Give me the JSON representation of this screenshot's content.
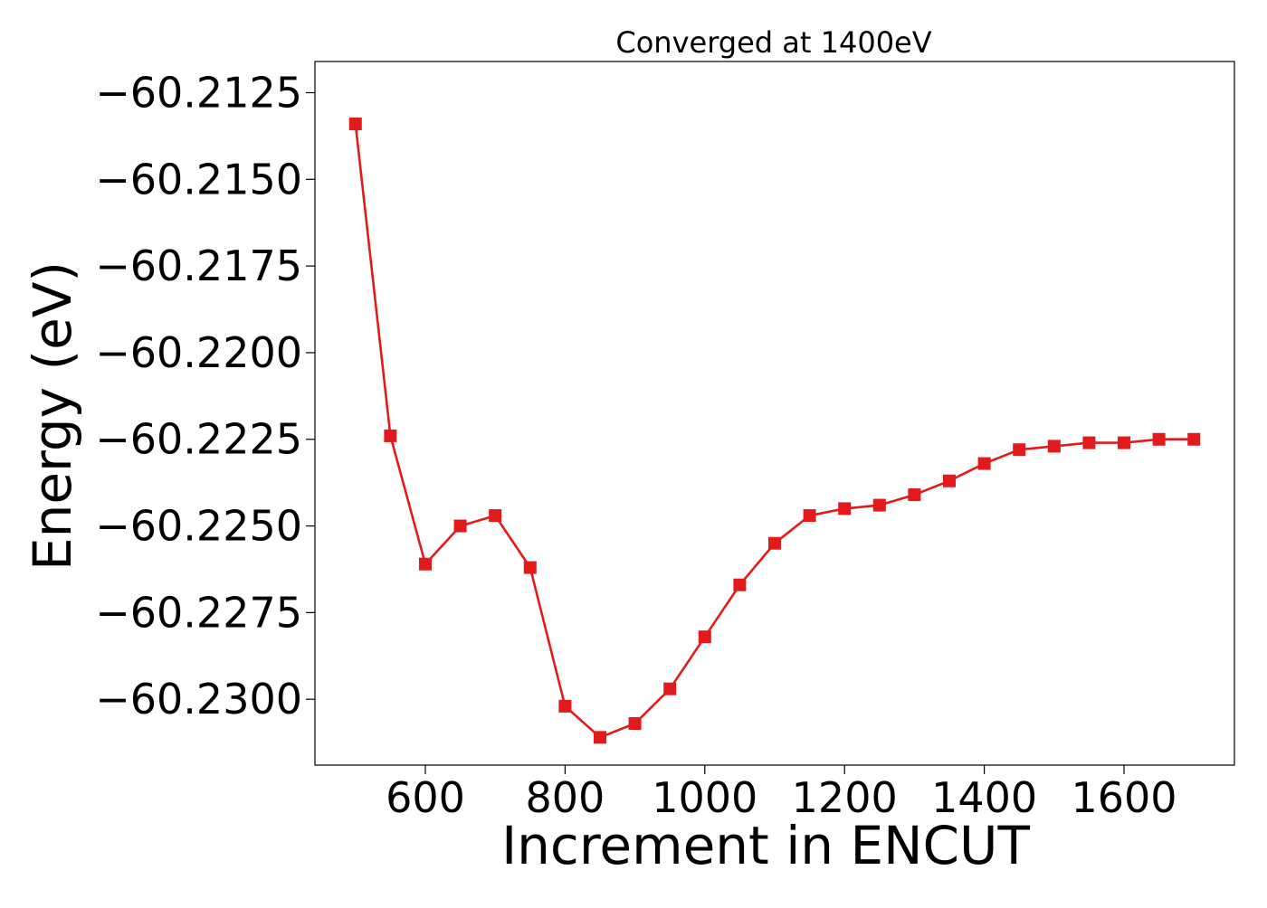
{
  "chart_data": {
    "type": "line",
    "title": "Converged at 1400eV",
    "xlabel": "Increment in ENCUT",
    "ylabel": "Energy (eV)",
    "xlim": [
      442,
      1758
    ],
    "ylim": [
      -60.2319,
      -60.2116
    ],
    "xticks": [
      600,
      800,
      1000,
      1200,
      1400,
      1600
    ],
    "xtick_labels": [
      "600",
      "800",
      "1000",
      "1200",
      "1400",
      "1600"
    ],
    "yticks": [
      -60.2125,
      -60.215,
      -60.2175,
      -60.22,
      -60.2225,
      -60.225,
      -60.2275,
      -60.23
    ],
    "ytick_labels": [
      "−60.2125",
      "−60.2150",
      "−60.2175",
      "−60.2200",
      "−60.2225",
      "−60.2250",
      "−60.2275",
      "−60.2300"
    ],
    "grid": false,
    "legend": "none",
    "marker": "square",
    "color": "#e31a1c",
    "x": [
      500,
      550,
      600,
      650,
      700,
      750,
      800,
      850,
      900,
      950,
      1000,
      1050,
      1100,
      1150,
      1200,
      1250,
      1300,
      1350,
      1400,
      1450,
      1500,
      1550,
      1600,
      1650,
      1700
    ],
    "series": [
      {
        "values": [
          -60.2134,
          -60.2224,
          -60.2261,
          -60.225,
          -60.2247,
          -60.2262,
          -60.2302,
          -60.2311,
          -60.2307,
          -60.2297,
          -60.2282,
          -60.2267,
          -60.2255,
          -60.2247,
          -60.2245,
          -60.2244,
          -60.2241,
          -60.2237,
          -60.2232,
          -60.2228,
          -60.2227,
          -60.2226,
          -60.2226,
          -60.2225,
          -60.2225
        ]
      }
    ]
  }
}
